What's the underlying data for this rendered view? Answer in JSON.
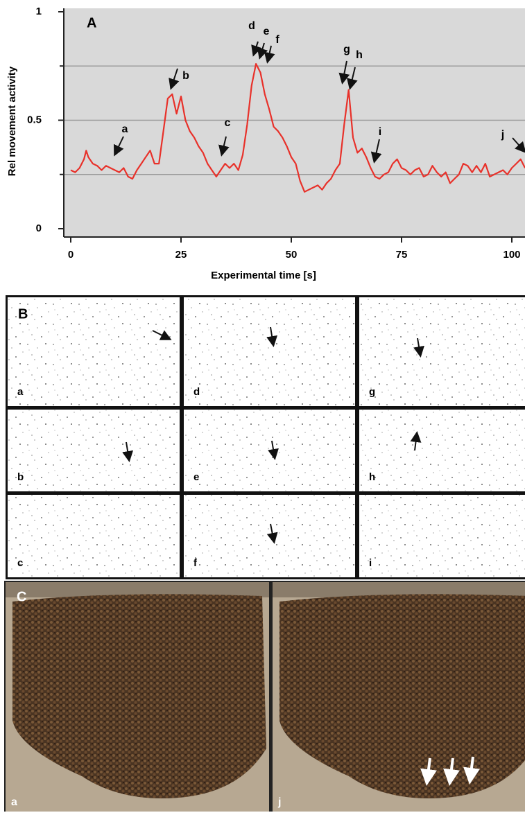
{
  "chart_data": {
    "type": "line",
    "panel_label": "A",
    "x_label": "Experimental time [s]",
    "y_label": "Rel movement activity",
    "xlim": [
      0,
      103
    ],
    "ylim": [
      0,
      1
    ],
    "xticks": [
      0,
      25,
      50,
      75,
      100
    ],
    "yticks": [
      0,
      0.5,
      1
    ],
    "grid_lines": [
      0.25,
      0.5,
      0.75
    ],
    "color": "#e8312a",
    "x": [
      0,
      1,
      2,
      3,
      3.5,
      4,
      5,
      6,
      7,
      8,
      9,
      10,
      11,
      12,
      13,
      14,
      15,
      16,
      17,
      18,
      19,
      20,
      21,
      22,
      23,
      24,
      25,
      26,
      27,
      28,
      29,
      30,
      31,
      32,
      33,
      34,
      35,
      36,
      37,
      38,
      39,
      40,
      41,
      42,
      43,
      44,
      45,
      46,
      47,
      48,
      49,
      50,
      51,
      52,
      53,
      54,
      55,
      56,
      57,
      58,
      59,
      60,
      61,
      62,
      63,
      64,
      65,
      66,
      67,
      68,
      69,
      70,
      71,
      72,
      73,
      74,
      75,
      76,
      77,
      78,
      79,
      80,
      81,
      82,
      83,
      84,
      85,
      86,
      87,
      88,
      89,
      90,
      91,
      92,
      93,
      94,
      95,
      96,
      97,
      98,
      99,
      100,
      101,
      102,
      103
    ],
    "values": [
      0.27,
      0.26,
      0.28,
      0.32,
      0.36,
      0.33,
      0.3,
      0.29,
      0.27,
      0.29,
      0.28,
      0.27,
      0.26,
      0.28,
      0.24,
      0.23,
      0.27,
      0.3,
      0.33,
      0.36,
      0.3,
      0.3,
      0.45,
      0.6,
      0.62,
      0.53,
      0.61,
      0.5,
      0.45,
      0.42,
      0.38,
      0.35,
      0.3,
      0.27,
      0.24,
      0.27,
      0.3,
      0.28,
      0.3,
      0.27,
      0.34,
      0.48,
      0.66,
      0.76,
      0.72,
      0.62,
      0.55,
      0.47,
      0.45,
      0.42,
      0.38,
      0.33,
      0.3,
      0.22,
      0.17,
      0.18,
      0.19,
      0.2,
      0.18,
      0.21,
      0.23,
      0.27,
      0.3,
      0.48,
      0.64,
      0.42,
      0.35,
      0.37,
      0.33,
      0.28,
      0.24,
      0.23,
      0.25,
      0.26,
      0.3,
      0.32,
      0.28,
      0.27,
      0.25,
      0.27,
      0.28,
      0.24,
      0.25,
      0.29,
      0.26,
      0.24,
      0.26,
      0.21,
      0.23,
      0.25,
      0.3,
      0.29,
      0.26,
      0.29,
      0.26,
      0.3,
      0.24,
      0.25,
      0.26,
      0.27,
      0.25,
      0.28,
      0.3,
      0.32,
      0.28
    ],
    "annotations": [
      "a",
      "b",
      "c",
      "d",
      "e",
      "f",
      "g",
      "h",
      "i",
      "j"
    ]
  },
  "panel_b": {
    "label": "B",
    "frames": [
      "a",
      "d",
      "g",
      "b",
      "e",
      "h",
      "c",
      "f",
      "i"
    ]
  },
  "panel_c": {
    "label": "C",
    "frames": [
      "a",
      "j"
    ]
  }
}
